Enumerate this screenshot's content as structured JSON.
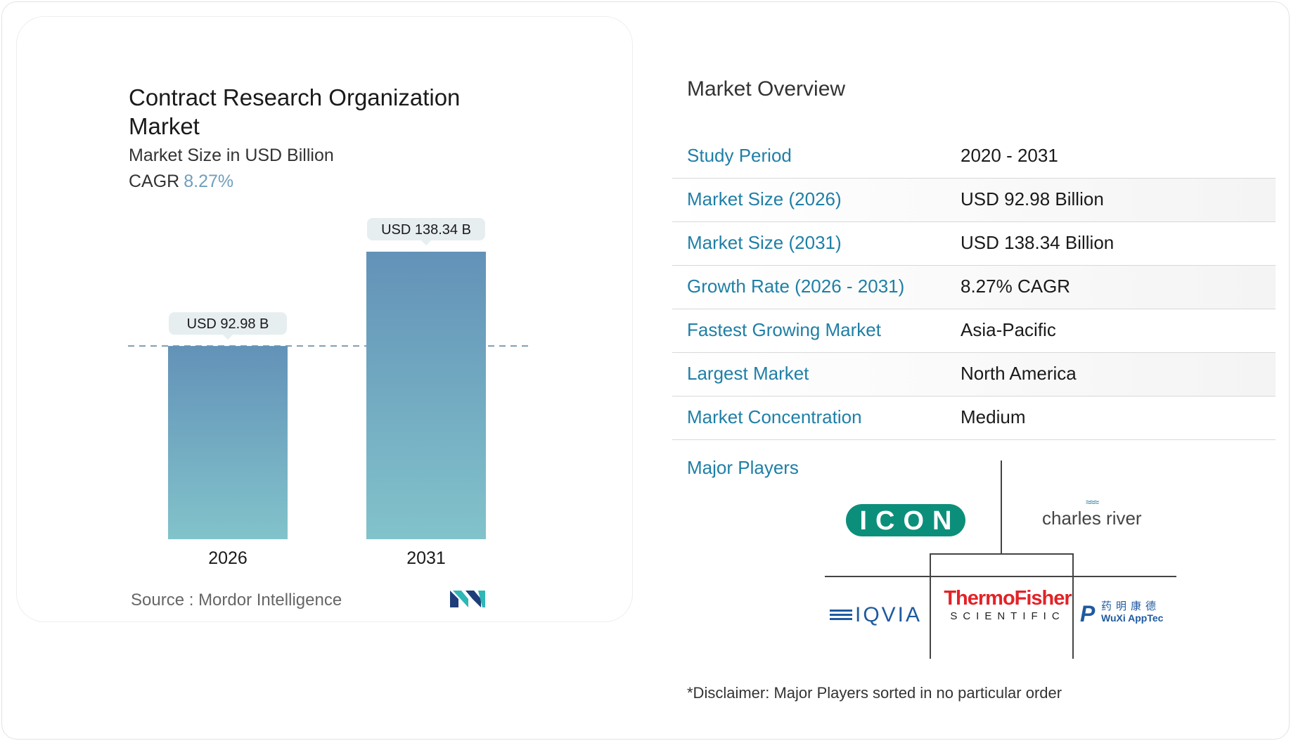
{
  "chart_data": {
    "type": "bar",
    "title": "Contract Research Organization Market",
    "subtitle": "Market Size in USD Billion",
    "cagr_label": "CAGR",
    "cagr_value": "8.27%",
    "categories": [
      "2026",
      "2031"
    ],
    "values": [
      92.98,
      138.34
    ],
    "data_labels": [
      "USD 92.98 B",
      "USD 138.34 B"
    ],
    "ylim": [
      0,
      138.34
    ],
    "reference_line_value": 92.98,
    "grid": false,
    "colors": {
      "bar_top": "#6392b8",
      "bar_bottom": "#82c3cb",
      "label_bg": "#e7eef0",
      "dash": "#7f9db0"
    }
  },
  "source": {
    "label": "Source :",
    "value": "Mordor Intelligence"
  },
  "brand_logo": "mordor-intelligence-logo",
  "overview": {
    "title": "Market Overview",
    "rows": [
      {
        "key": "Study Period",
        "value": "2020 - 2031"
      },
      {
        "key": "Market Size (2026)",
        "value": "USD 92.98 Billion"
      },
      {
        "key": "Market Size (2031)",
        "value": "USD 138.34 Billion"
      },
      {
        "key": "Growth Rate (2026 - 2031)",
        "value": "8.27% CAGR"
      },
      {
        "key": "Fastest Growing Market",
        "value": "Asia-Pacific"
      },
      {
        "key": "Largest Market",
        "value": "North America"
      },
      {
        "key": "Market Concentration",
        "value": "Medium"
      }
    ]
  },
  "players": {
    "title": "Major Players",
    "icon": "ICON",
    "charles_river": "charles river",
    "iqvia": "IQVIA",
    "thermo_line1": "ThermoFisher",
    "thermo_line2": "SCIENTIFIC",
    "wuxi_cn": "药明康德",
    "wuxi_en": "WuXi AppTec"
  },
  "disclaimer": "*Disclaimer: Major Players sorted in no particular order"
}
